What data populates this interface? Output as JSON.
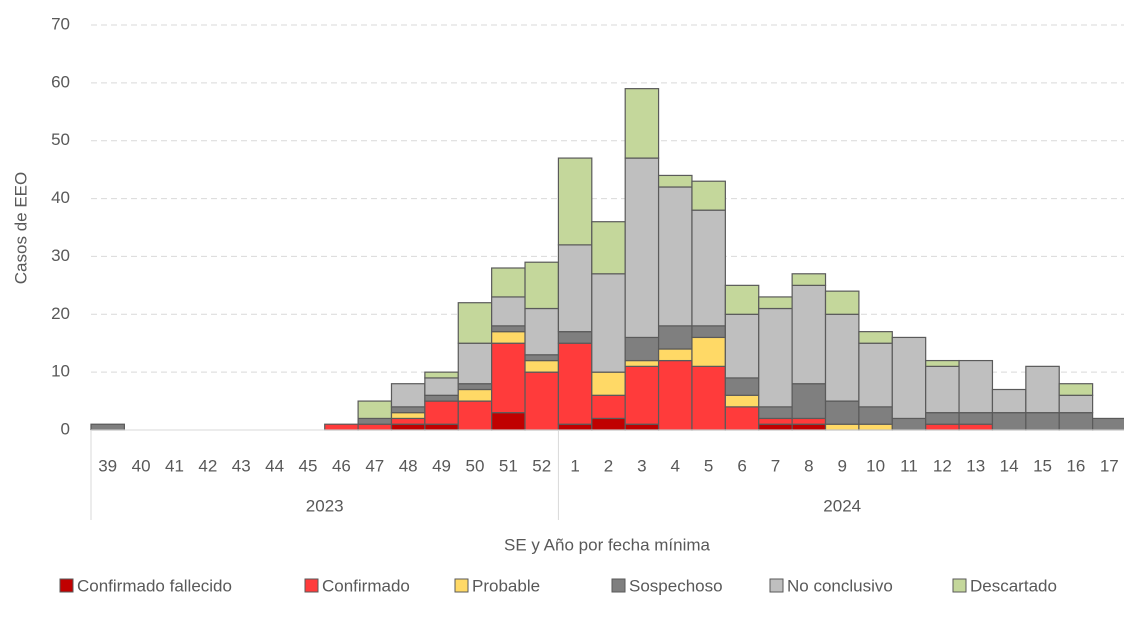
{
  "chart_data": {
    "type": "stacked_bar",
    "y_axis_label": "Casos de EEO",
    "x_axis_label": "SE y Año por fecha mínima",
    "categories": [
      "39",
      "40",
      "41",
      "42",
      "43",
      "44",
      "45",
      "46",
      "47",
      "48",
      "49",
      "50",
      "51",
      "52",
      "1",
      "2",
      "3",
      "4",
      "5",
      "6",
      "7",
      "8",
      "9",
      "10",
      "11",
      "12",
      "13",
      "14",
      "15",
      "16",
      "17"
    ],
    "years": [
      "2023",
      "2023",
      "2023",
      "2023",
      "2023",
      "2023",
      "2023",
      "2023",
      "2023",
      "2023",
      "2023",
      "2023",
      "2023",
      "2023",
      "2024",
      "2024",
      "2024",
      "2024",
      "2024",
      "2024",
      "2024",
      "2024",
      "2024",
      "2024",
      "2024",
      "2024",
      "2024",
      "2024",
      "2024",
      "2024",
      "2024"
    ],
    "series": [
      {
        "name": "Confirmado fallecido",
        "color": "#c00000",
        "values": [
          0,
          0,
          0,
          0,
          0,
          0,
          0,
          0,
          0,
          1,
          1,
          0,
          3,
          0,
          1,
          2,
          1,
          0,
          0,
          0,
          1,
          1,
          0,
          0,
          0,
          0,
          0,
          0,
          0,
          0,
          0
        ]
      },
      {
        "name": "Confirmado",
        "color": "#ff3b3b",
        "values": [
          0,
          0,
          0,
          0,
          0,
          0,
          0,
          1,
          1,
          1,
          4,
          5,
          12,
          10,
          14,
          4,
          10,
          12,
          11,
          4,
          1,
          1,
          0,
          0,
          0,
          1,
          1,
          0,
          0,
          0,
          0
        ]
      },
      {
        "name": "Probable",
        "color": "#ffd966",
        "values": [
          0,
          0,
          0,
          0,
          0,
          0,
          0,
          0,
          0,
          1,
          0,
          2,
          2,
          2,
          0,
          4,
          1,
          2,
          5,
          2,
          0,
          0,
          1,
          1,
          0,
          0,
          0,
          0,
          0,
          0,
          0
        ]
      },
      {
        "name": "Sospechoso",
        "color": "#7f7f7f",
        "values": [
          1,
          0,
          0,
          0,
          0,
          0,
          0,
          0,
          1,
          1,
          1,
          1,
          1,
          1,
          2,
          0,
          4,
          4,
          2,
          3,
          2,
          6,
          4,
          3,
          2,
          2,
          2,
          3,
          3,
          3,
          2
        ]
      },
      {
        "name": "No conclusivo",
        "color": "#bfbfbf",
        "values": [
          0,
          0,
          0,
          0,
          0,
          0,
          0,
          0,
          0,
          4,
          3,
          7,
          5,
          8,
          15,
          17,
          31,
          24,
          20,
          11,
          17,
          17,
          15,
          11,
          14,
          8,
          9,
          4,
          8,
          3,
          0
        ]
      },
      {
        "name": "Descartado",
        "color": "#c4d79b",
        "values": [
          0,
          0,
          0,
          0,
          0,
          0,
          0,
          0,
          3,
          0,
          1,
          7,
          5,
          8,
          15,
          9,
          12,
          2,
          5,
          5,
          2,
          2,
          4,
          2,
          0,
          1,
          0,
          0,
          0,
          2,
          0
        ]
      }
    ],
    "ylim": [
      0,
      70
    ],
    "yticks": [
      0,
      10,
      20,
      30,
      40,
      50,
      60,
      70
    ],
    "grid": true,
    "legend": "bottom"
  }
}
